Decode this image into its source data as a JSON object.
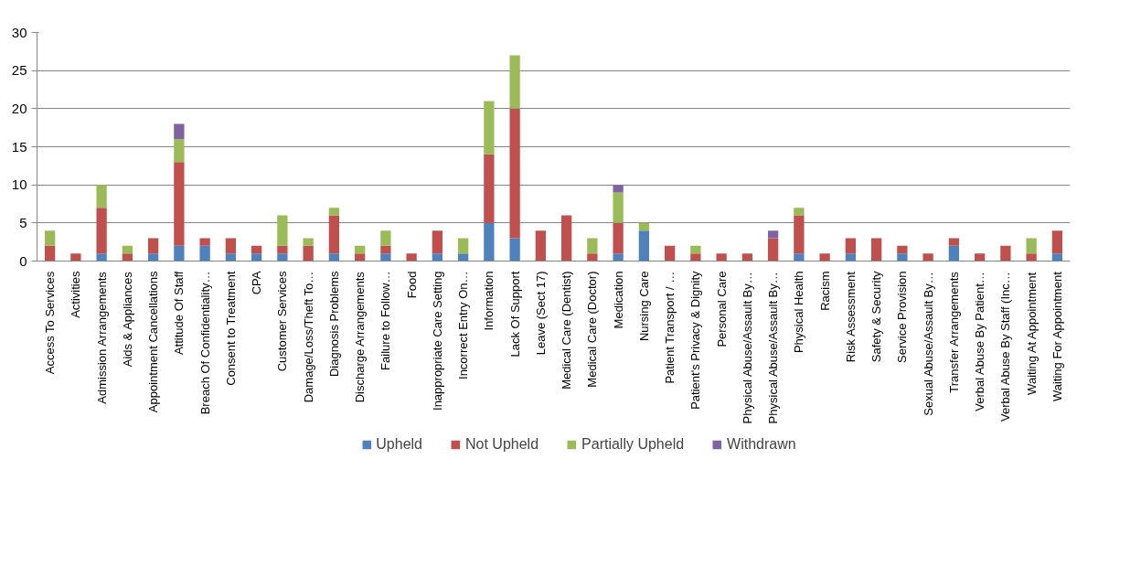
{
  "chart_data": {
    "type": "bar",
    "stacked": true,
    "categories": [
      "Access To Services",
      "Activities",
      "Admission Arrangements",
      "Aids & Appliances",
      "Appointment Cancellations",
      "Attitude Of Staff",
      "Breach Of Confidentiality…",
      "Consent to Treatment",
      "CPA",
      "Customer Services",
      "Damage/Loss/Theft To…",
      "Diagnosis Problems",
      "Discharge Arrangements",
      "Failure to Follow…",
      "Food",
      "Inappropriate Care Setting",
      "Incorrect Entry On…",
      "Information",
      "Lack Of Support",
      "Leave (Sect 17)",
      "Medical Care (Dentist)",
      "Medical Care (Doctor)",
      "Medication",
      "Nursing Care",
      "Patient Transport / …",
      "Patient's Privacy & Dignity",
      "Personal Care",
      "Physical Abuse/Assault By…",
      "Physical Abuse/Assault By…",
      "Physical Health",
      "Racism",
      "Risk Assessment",
      "Safety & Security",
      "Service Provision",
      "Sexual Abuse/Assault By…",
      "Transfer Arrangements",
      "Verbal Abuse By Patient…",
      "Verbal Abuse By Staff (Inc…",
      "Waiting At Appointment",
      "Waiting For Appointment"
    ],
    "series": [
      {
        "name": "Upheld",
        "color": "#4f81bd",
        "values": [
          0,
          0,
          1,
          0,
          1,
          2,
          2,
          1,
          1,
          1,
          0,
          1,
          0,
          1,
          0,
          1,
          1,
          5,
          3,
          0,
          0,
          0,
          1,
          4,
          0,
          0,
          0,
          0,
          0,
          1,
          0,
          1,
          0,
          1,
          0,
          2,
          0,
          0,
          0,
          1
        ]
      },
      {
        "name": "Not Upheld",
        "color": "#c0504d",
        "values": [
          2,
          1,
          6,
          1,
          2,
          11,
          1,
          2,
          1,
          1,
          2,
          5,
          1,
          1,
          1,
          3,
          0,
          9,
          17,
          4,
          6,
          1,
          4,
          0,
          2,
          1,
          1,
          1,
          3,
          5,
          1,
          2,
          3,
          1,
          1,
          1,
          1,
          2,
          1,
          3
        ]
      },
      {
        "name": "Partially Upheld",
        "color": "#9bbb59",
        "values": [
          2,
          0,
          3,
          1,
          0,
          3,
          0,
          0,
          0,
          4,
          1,
          1,
          1,
          2,
          0,
          0,
          2,
          7,
          7,
          0,
          0,
          2,
          4,
          1,
          0,
          1,
          0,
          0,
          0,
          1,
          0,
          0,
          0,
          0,
          0,
          0,
          0,
          0,
          2,
          0
        ]
      },
      {
        "name": "Withdrawn",
        "color": "#8064a2",
        "values": [
          0,
          0,
          0,
          0,
          0,
          2,
          0,
          0,
          0,
          0,
          0,
          0,
          0,
          0,
          0,
          0,
          0,
          0,
          0,
          0,
          0,
          0,
          1,
          0,
          0,
          0,
          0,
          0,
          1,
          0,
          0,
          0,
          0,
          0,
          0,
          0,
          0,
          0,
          0,
          0
        ]
      }
    ],
    "ylim": [
      0,
      30
    ],
    "yticks": [
      0,
      5,
      10,
      15,
      20,
      25,
      30
    ],
    "grid": "y",
    "legend": "bottom"
  }
}
